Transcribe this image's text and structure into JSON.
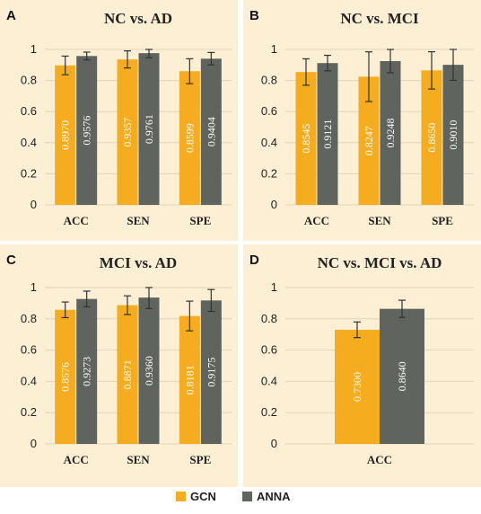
{
  "colors": {
    "gcn": "#f5ad1f",
    "anna": "#5f655e",
    "panel_bg": "#fdefd3"
  },
  "legend": [
    {
      "name": "GCN",
      "color": "#f5ad1f"
    },
    {
      "name": "ANNA",
      "color": "#5f655e"
    }
  ],
  "chart_data": [
    {
      "letter": "A",
      "type": "bar",
      "title": "NC vs. AD",
      "categories": [
        "ACC",
        "SEN",
        "SPE"
      ],
      "ylim": [
        0,
        1
      ],
      "yticks": [
        "0",
        "0.2",
        "0.4",
        "0.6",
        "0.8",
        "1"
      ],
      "series": [
        {
          "name": "GCN",
          "values": [
            0.897,
            0.9357,
            0.8599
          ],
          "labels": [
            "0.8970",
            "0.9357",
            "0.8599"
          ],
          "errors": [
            0.06,
            0.055,
            0.08
          ]
        },
        {
          "name": "ANNA",
          "values": [
            0.9576,
            0.9761,
            0.9404
          ],
          "labels": [
            "0.9576",
            "0.9761",
            "0.9404"
          ],
          "errors": [
            0.025,
            0.03,
            0.04
          ]
        }
      ]
    },
    {
      "letter": "B",
      "type": "bar",
      "title": "NC vs. MCI",
      "categories": [
        "ACC",
        "SEN",
        "SPE"
      ],
      "ylim": [
        0,
        1
      ],
      "yticks": [
        "0",
        "0.2",
        "0.4",
        "0.6",
        "0.8",
        "1"
      ],
      "series": [
        {
          "name": "GCN",
          "values": [
            0.8545,
            0.8247,
            0.865
          ],
          "labels": [
            "0.8545",
            "0.8247",
            "0.8650"
          ],
          "errors": [
            0.085,
            0.16,
            0.12
          ]
        },
        {
          "name": "ANNA",
          "values": [
            0.9121,
            0.9248,
            0.901
          ],
          "labels": [
            "0.9121",
            "0.9248",
            "0.9010"
          ],
          "errors": [
            0.05,
            0.075,
            0.1
          ]
        }
      ]
    },
    {
      "letter": "C",
      "type": "bar",
      "title": "MCI vs. AD",
      "categories": [
        "ACC",
        "SEN",
        "SPE"
      ],
      "ylim": [
        0,
        1
      ],
      "yticks": [
        "0",
        "0.2",
        "0.4",
        "0.6",
        "0.8",
        "1"
      ],
      "series": [
        {
          "name": "GCN",
          "values": [
            0.8576,
            0.8871,
            0.8181
          ],
          "labels": [
            "0.8576",
            "0.8871",
            "0.8181"
          ],
          "errors": [
            0.05,
            0.06,
            0.095
          ]
        },
        {
          "name": "ANNA",
          "values": [
            0.9273,
            0.936,
            0.9175
          ],
          "labels": [
            "0.9273",
            "0.9360",
            "0.9175"
          ],
          "errors": [
            0.05,
            0.07,
            0.07
          ]
        }
      ]
    },
    {
      "letter": "D",
      "type": "bar",
      "title": "NC vs. MCI vs. AD",
      "categories": [
        "ACC"
      ],
      "ylim": [
        0,
        1
      ],
      "yticks": [
        "0",
        "0.2",
        "0.4",
        "0.6",
        "0.8",
        "1"
      ],
      "series": [
        {
          "name": "GCN",
          "values": [
            0.73
          ],
          "labels": [
            "0.7300"
          ],
          "errors": [
            0.05
          ]
        },
        {
          "name": "ANNA",
          "values": [
            0.864
          ],
          "labels": [
            "0.8640"
          ],
          "errors": [
            0.055
          ]
        }
      ]
    }
  ]
}
